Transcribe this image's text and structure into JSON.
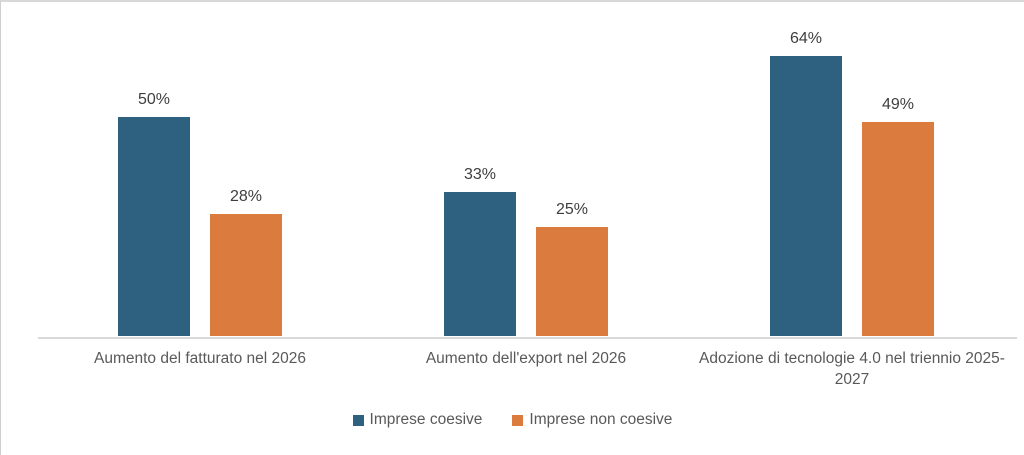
{
  "frame": {
    "background": "#FFFFFF",
    "border_top_color": "#D8D8D8",
    "border_left_color": "#CFCFCF"
  },
  "chart_data": {
    "type": "bar",
    "title": "",
    "xlabel": "",
    "ylabel": "",
    "unit": "%",
    "grid": false,
    "legend_position": "bottom",
    "ylim": [
      0,
      70
    ],
    "axis_color": "#D9D9D9",
    "value_label_color": "#3E3E3E",
    "category_label_color": "#595959",
    "categories": [
      "Aumento del fatturato nel 2026",
      "Aumento dell'export nel 2026",
      "Adozione di tecnologie 4.0 nel triennio 2025-2027"
    ],
    "series": [
      {
        "name": "Imprese coesive",
        "color": "#2E6180",
        "values": [
          50,
          33,
          64
        ],
        "labels": [
          "50%",
          "33%",
          "64%"
        ]
      },
      {
        "name": "Imprese non coesive",
        "color": "#DB7C3E",
        "values": [
          28,
          25,
          49
        ],
        "labels": [
          "28%",
          "25%",
          "49%"
        ]
      }
    ]
  }
}
